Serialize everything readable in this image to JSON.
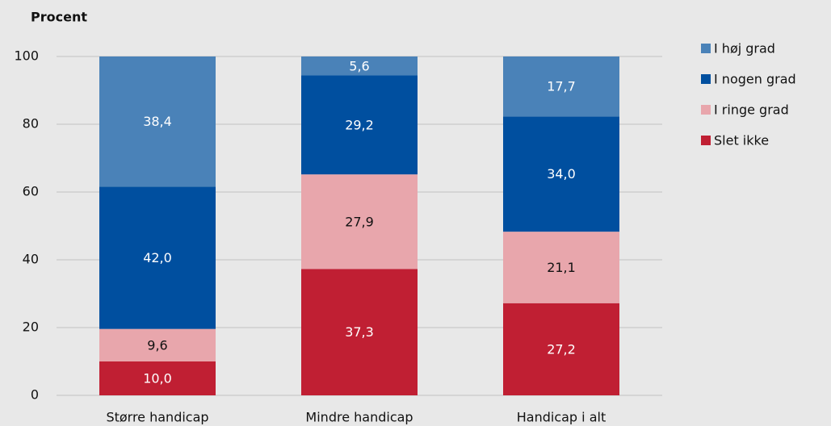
{
  "chart_data": {
    "type": "stacked_bar",
    "title": "Procent",
    "categories": [
      "Større handicap",
      "Mindre handicap",
      "Handicap i alt"
    ],
    "series": [
      {
        "name": "Slet ikke",
        "color": "#c01f33",
        "values": [
          10.0,
          37.3,
          27.2
        ],
        "value_labels": [
          "10,0",
          "37,3",
          "27,2"
        ]
      },
      {
        "name": "I ringe grad",
        "color": "#e8a6ac",
        "values": [
          9.6,
          27.9,
          21.1
        ],
        "value_labels": [
          "9,6",
          "27,9",
          "21,1"
        ]
      },
      {
        "name": "I nogen grad",
        "color": "#004f9f",
        "values": [
          42.0,
          29.2,
          34.0
        ],
        "value_labels": [
          "42,0",
          "29,2",
          "34,0"
        ]
      },
      {
        "name": "I høj grad",
        "color": "#4a82b8",
        "values": [
          38.4,
          5.6,
          17.7
        ],
        "value_labels": [
          "38,4",
          "5,6",
          "17,7"
        ]
      }
    ],
    "ylim": [
      0,
      100
    ],
    "yticks": [
      0,
      20,
      40,
      60,
      80,
      100
    ],
    "grid": true,
    "legend": "right"
  }
}
